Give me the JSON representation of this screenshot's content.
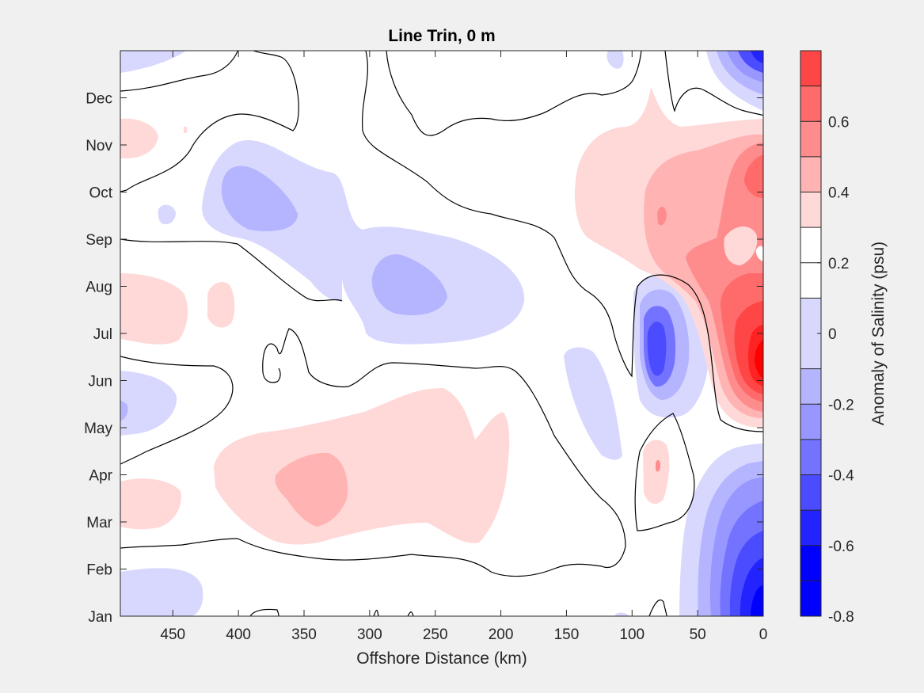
{
  "chart_data": {
    "type": "heatmap",
    "subtype": "filled-contour",
    "title": "Line Trin, 0 m",
    "xlabel": "Offshore Distance (km)",
    "ylabel": "",
    "x_ticks": [
      450,
      400,
      350,
      300,
      250,
      200,
      150,
      100,
      50,
      0
    ],
    "xlim": [
      490,
      0
    ],
    "x_direction": "reversed",
    "y_ticks": [
      "Jan",
      "Feb",
      "Mar",
      "Apr",
      "May",
      "Jun",
      "Jul",
      "Aug",
      "Sep",
      "Oct",
      "Nov",
      "Dec"
    ],
    "ylim_months": [
      1,
      13
    ],
    "colorbar": {
      "label": "Anomaly of Salinity (psu)",
      "ticks": [
        "-0.8",
        "-0.6",
        "-0.4",
        "-0.2",
        "0",
        "0.2",
        "0.4",
        "0.6"
      ],
      "levels": [
        -0.8,
        -0.7,
        -0.6,
        -0.5,
        -0.4,
        -0.3,
        -0.2,
        -0.1,
        0.1,
        0.2,
        0.3,
        0.4,
        0.5,
        0.6,
        0.7,
        0.8
      ],
      "colors": [
        "#0000ff",
        "#2323ff",
        "#4b4bff",
        "#7373ff",
        "#9797ff",
        "#b5b5ff",
        "#d8d8ff",
        "#ffffff",
        "#ffffff",
        "#ffd8d8",
        "#ffb3b3",
        "#ff8c8c",
        "#ff6b6b",
        "#ff4646",
        "#ff2222",
        "#ff0000"
      ]
    },
    "anomalies": [
      {
        "x": 10,
        "month": 7.5,
        "value": 0.8
      },
      {
        "x": 20,
        "month": 10.3,
        "value": 0.4
      },
      {
        "x": 80,
        "month": 9.9,
        "value": 0.3
      },
      {
        "x": 80,
        "month": 7.5,
        "value": -0.5
      },
      {
        "x": 10,
        "month": 12.8,
        "value": -0.6
      },
      {
        "x": 10,
        "month": 2.0,
        "value": -0.8
      },
      {
        "x": 345,
        "month": 10.0,
        "value": -0.3
      },
      {
        "x": 265,
        "month": 8.0,
        "value": -0.3
      },
      {
        "x": 340,
        "month": 4.0,
        "value": 0.3
      },
      {
        "x": 250,
        "month": 4.5,
        "value": 0.1
      },
      {
        "x": 135,
        "month": 6.0,
        "value": -0.1
      },
      {
        "x": 80,
        "month": 3.8,
        "value": 0.1
      },
      {
        "x": 470,
        "month": 1.6,
        "value": -0.1
      },
      {
        "x": 485,
        "month": 5.2,
        "value": -0.2
      },
      {
        "x": 465,
        "month": 8.0,
        "value": 0.1
      },
      {
        "x": 470,
        "month": 3.7,
        "value": 0.1
      },
      {
        "x": 470,
        "month": 10.9,
        "value": 0.1
      },
      {
        "x": 460,
        "month": 12.8,
        "value": -0.1
      }
    ]
  }
}
